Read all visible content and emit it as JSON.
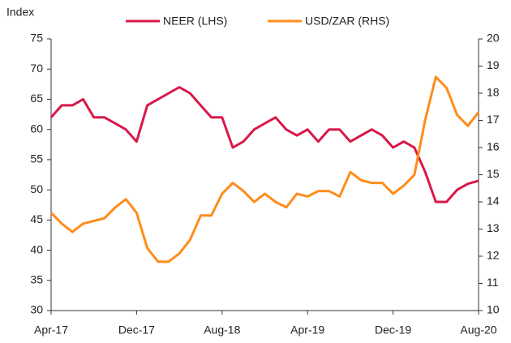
{
  "chart_data": {
    "type": "line",
    "ylabel": "Index",
    "categories": [
      "Apr-17",
      null,
      null,
      null,
      null,
      null,
      null,
      null,
      "Dec-17",
      null,
      null,
      null,
      null,
      null,
      null,
      null,
      "Aug-18",
      null,
      null,
      null,
      null,
      null,
      null,
      null,
      "Apr-19",
      null,
      null,
      null,
      null,
      null,
      null,
      null,
      "Dec-19",
      null,
      null,
      null,
      null,
      null,
      null,
      null,
      "Aug-20"
    ],
    "series": [
      {
        "name": "NEER (LHS)",
        "color": "#d9184a",
        "axis": "y",
        "values": [
          62,
          64,
          64,
          65,
          62,
          62,
          61,
          60,
          58,
          64,
          65,
          66,
          67,
          66,
          64,
          62,
          62,
          57,
          58,
          60,
          61,
          62,
          60,
          59,
          60,
          58,
          60,
          60,
          58,
          59,
          60,
          59,
          57,
          58,
          57,
          53,
          48,
          48,
          50,
          51,
          51.5
        ]
      },
      {
        "name": "USD/ZAR (RHS)",
        "color": "#ff8c1a",
        "axis": "y2",
        "values": [
          13.6,
          13.2,
          12.9,
          13.2,
          13.3,
          13.4,
          13.8,
          14.1,
          13.6,
          12.3,
          11.8,
          11.8,
          12.1,
          12.6,
          13.5,
          13.5,
          14.3,
          14.7,
          14.4,
          14,
          14.3,
          14,
          13.8,
          14.3,
          14.2,
          14.4,
          14.4,
          14.2,
          15.1,
          14.8,
          14.7,
          14.7,
          14.3,
          14.6,
          15,
          17,
          18.6,
          18.2,
          17.2,
          16.8,
          17.3
        ]
      }
    ],
    "ylim": [
      30,
      75
    ],
    "yticks": [
      30,
      35,
      40,
      45,
      50,
      55,
      60,
      65,
      70,
      75
    ],
    "y2lim": [
      10,
      20
    ],
    "y2ticks": [
      10,
      11,
      12,
      13,
      14,
      15,
      16,
      17,
      18,
      19,
      20
    ],
    "legend": "top",
    "grid": false
  }
}
